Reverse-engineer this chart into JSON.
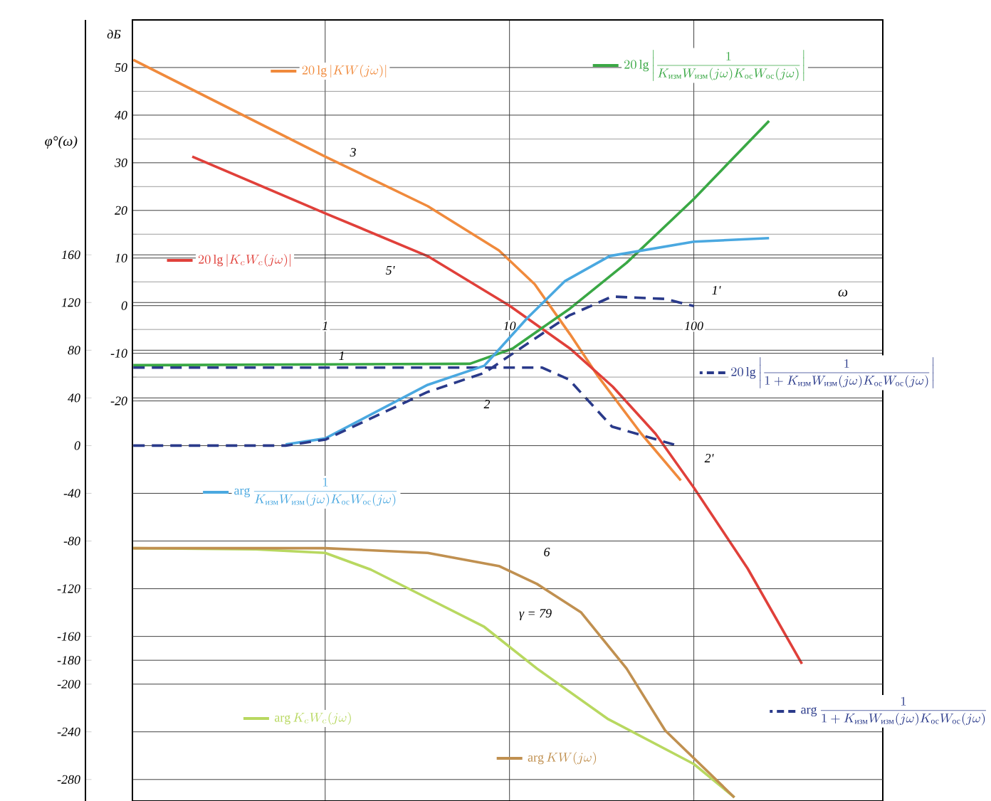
{
  "chart_data": {
    "type": "line",
    "log": "x",
    "grid": true,
    "legend": "top right",
    "xlabel": "ω",
    "ylabel": "дБ",
    "y2label": "φ°(ω)",
    "xlim": [
      0.09,
      1060
    ],
    "xticks": [
      1,
      10,
      100
    ],
    "ylim": [
      -104,
      60
    ],
    "yticks": [
      50,
      40,
      30,
      20,
      10,
      0,
      -10,
      -20
    ],
    "y2lim": [
      -298,
      357
    ],
    "y2ticks": [
      160,
      120,
      80,
      40,
      0,
      -40,
      -80,
      -120,
      -160,
      -180,
      -200,
      -240,
      -280
    ],
    "series": [
      {
        "name": "20\\lg\\left|KW(j\\omega)\\right|",
        "color": "#f08a3c",
        "x": [
          0.091,
          1,
          3.6,
          8.76,
          13.7,
          21.3,
          30.3,
          51.9,
          85
        ],
        "values": [
          51.6,
          31.3,
          20.9,
          11.6,
          4.5,
          -6,
          -14.9,
          -26.9,
          -36.7
        ]
      },
      {
        "name": "20\\lg\\left|K_cW_c(j\\omega)\\right|",
        "color": "#e0403a",
        "x": [
          0.19,
          1,
          3.6,
          10,
          21.3,
          36.3,
          62,
          100,
          196,
          386
        ],
        "values": [
          31.3,
          19.4,
          10.4,
          0,
          -9,
          -17,
          -26.9,
          -38.2,
          -55.2,
          -75.2
        ]
      },
      {
        "name": "20\\lg\\left|\\frac{1}{K_{\\text{изм}}W_{\\text{изм}}(j\\omega)K_{\\text{ос}}W_{\\text{ос}}(j\\omega)}\\right|",
        "color": "#3aa845",
        "x": [
          0.091,
          6.1,
          10.4,
          21.3,
          43.2,
          100,
          256
        ],
        "values": [
          -12.5,
          -12.2,
          -9,
          -0.6,
          9,
          22.4,
          38.8
        ]
      },
      {
        "name": "20\\lg\\left|\\frac{1}{1+K_{\\text{изм}}W_{\\text{изм}}(j\\omega)K_{\\text{ос}}W_{\\text{ос}}(j\\omega)}\\right|",
        "color": "#2a3a8a",
        "line_style": "dashed",
        "x": [
          0.091,
          1,
          8,
          15,
          21,
          36,
          80
        ],
        "values": [
          -13,
          -13,
          -13,
          -13,
          -15.5,
          -25.4,
          -29.3
        ]
      },
      {
        "name": "\\arg\\frac{1}{K_{\\text{изм}}W_{\\text{изм}}(j\\omega)K_{\\text{ос}}W_{\\text{ос}}(j\\omega)}",
        "color": "#4aa8e0",
        "axis": "y2",
        "x": [
          0.61,
          1,
          3.6,
          7.3,
          12.5,
          20,
          35,
          100,
          256
        ],
        "values": [
          1,
          6,
          51,
          67,
          107,
          138,
          159,
          171,
          174
        ]
      },
      {
        "name": "\\arg\\frac{1}{1+K_{\\text{изм}}W_{\\text{изм}}(j\\omega)K_{\\text{ос}}W_{\\text{ос}}(j\\omega)}",
        "color": "#2a3a8a",
        "line_style": "dashed",
        "axis": "y2",
        "x": [
          0.091,
          0.61,
          1,
          3.6,
          7.3,
          21,
          36,
          70,
          100
        ],
        "values": [
          0,
          0,
          5,
          45,
          61,
          109,
          125,
          123,
          117
        ]
      },
      {
        "name": "\\arg K_cW_c(j\\omega)",
        "color": "#b8d860",
        "axis": "y2",
        "x": [
          0.091,
          0.42,
          1,
          1.77,
          3.6,
          7.3,
          14.1,
          34,
          100,
          166
        ],
        "values": [
          -86,
          -87,
          -90,
          -104,
          -128,
          -152,
          -187,
          -229,
          -267,
          -295
        ]
      },
      {
        "name": "\\arg KW(j\\omega)",
        "color": "#c09050",
        "axis": "y2",
        "x": [
          0.091,
          1,
          3.6,
          8.76,
          14.1,
          24.5,
          43.2,
          70,
          166
        ],
        "values": [
          -86,
          -86,
          -90,
          -101,
          -116,
          -140,
          -187,
          -239,
          -295
        ]
      }
    ],
    "annotations": [
      "3",
      "5'",
      "1",
      "2",
      "1'",
      "2'",
      "6",
      "γ = 79"
    ]
  }
}
